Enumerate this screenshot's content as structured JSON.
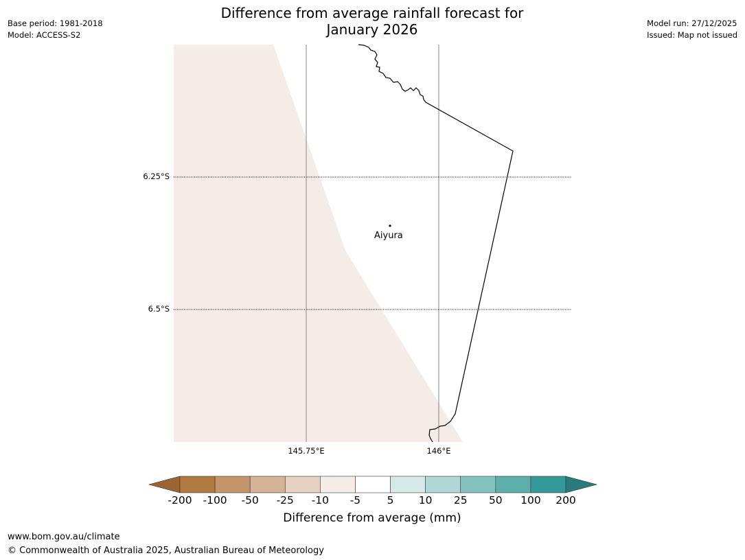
{
  "title": {
    "line1": "Difference from average rainfall forecast for",
    "line2": "January 2026"
  },
  "meta_left": {
    "base_period": "Base period: 1981-2018",
    "model": "Model: ACCESS-S2"
  },
  "meta_right": {
    "model_run": "Model run: 27/12/2025",
    "issued": "Issued: Map not issued"
  },
  "map": {
    "lat_labels": [
      "6.25°S",
      "6.5°S"
    ],
    "lon_labels": [
      "145.75°E",
      "146°E"
    ],
    "city": {
      "name": "Aiyura"
    },
    "shaded_category": "-10 to -5"
  },
  "colorbar": {
    "ticks": [
      "-200",
      "-100",
      "-50",
      "-25",
      "-10",
      "-5",
      "5",
      "10",
      "25",
      "50",
      "100",
      "200"
    ],
    "colors": [
      "#9b6430",
      "#b17a41",
      "#c4956b",
      "#d4b396",
      "#e6d0bf",
      "#f4ede7",
      "#ffffff",
      "#d6e9e9",
      "#aed7d5",
      "#84c2be",
      "#5eaeac",
      "#35999a",
      "#2a7b7b"
    ],
    "label": "Difference from average (mm)"
  },
  "footer": {
    "url": "www.bom.gov.au/climate",
    "copyright": "© Commonwealth of Australia 2025, Australian Bureau of Meteorology"
  }
}
